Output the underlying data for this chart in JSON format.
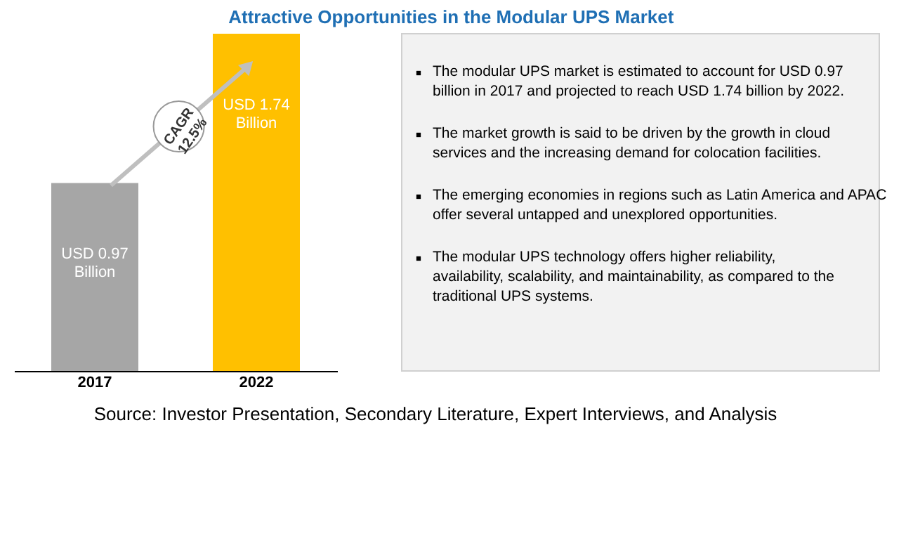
{
  "chart_data": {
    "type": "bar",
    "title": "Attractive Opportunities in the Modular UPS Market",
    "categories": [
      "2017",
      "2022"
    ],
    "values": [
      0.97,
      1.74
    ],
    "colors": [
      "#a6a6a6",
      "#ffc000"
    ],
    "value_labels": [
      "USD 0.97\nBillion",
      "USD 1.74\nBillion"
    ],
    "annotations": [
      "CAGR\n12.5%",
      "The modular UPS market is estimated to account for USD 0.97 billion in 2017 and projected to reach USD 1.74 billion by 2022.",
      "The market growth is said to be driven by the growth in cloud services and the increasing demand for colocation facilities.",
      "The emerging economies in regions such as Latin America and APAC offer several untapped and unexplored opportunities.",
      "The modular UPS technology offers higher reliability, availability, scalability, and maintainability, as compared to the traditional UPS systems.",
      "Source: Investor Presentation, Secondary Literature, Expert Interviews, and Analysis"
    ]
  }
}
